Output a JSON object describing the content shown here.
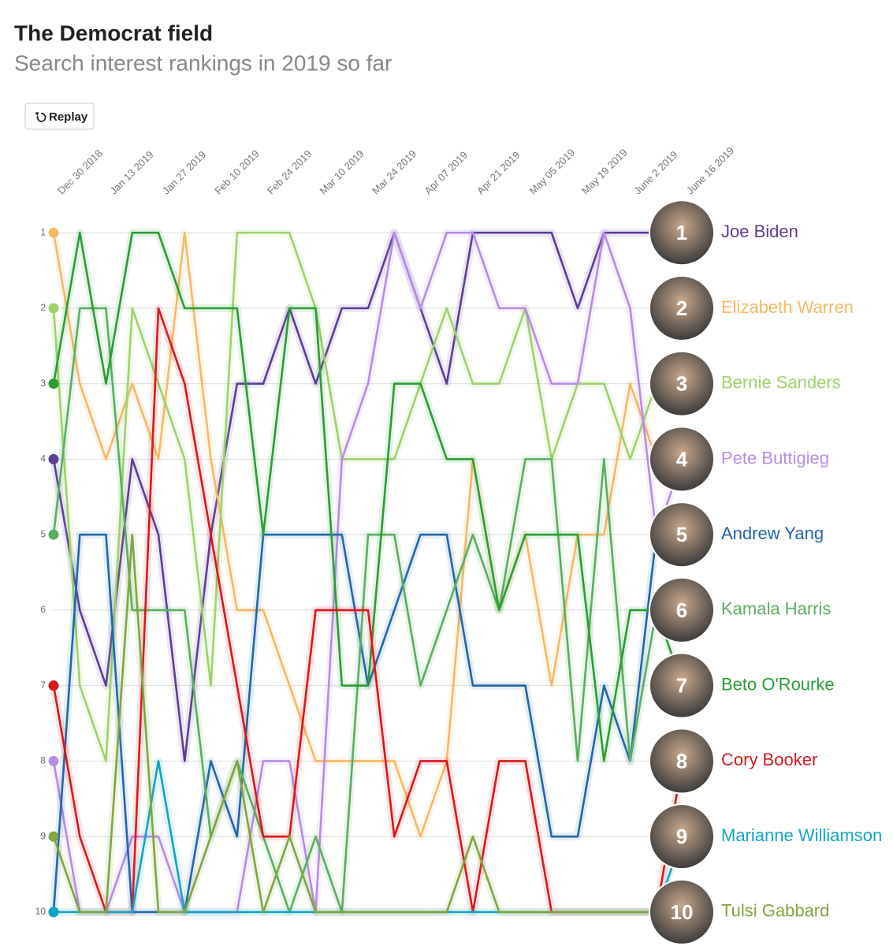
{
  "chart_data": {
    "type": "bump",
    "title": "The Democrat field",
    "subtitle": "Search interest rankings in 2019 so far",
    "button": "Replay",
    "categories": [
      "Dec 30 2018",
      null,
      "Jan 13 2019",
      null,
      "Jan 27 2019",
      null,
      "Feb 10 2019",
      null,
      "Feb 24 2019",
      null,
      "Mar 10 2019",
      null,
      "Mar 24 2019",
      null,
      "Apr 07 2019",
      null,
      "Apr 21 2019",
      null,
      "May 05 2019",
      null,
      "May 19 2019",
      null,
      "June 2 2019",
      null,
      "June 16 2019"
    ],
    "ylim": [
      0.58,
      10.45
    ],
    "y_inverted": true,
    "yticks": [
      1,
      2,
      3,
      4,
      5,
      6,
      7,
      8,
      9,
      10
    ],
    "grid": true,
    "series": [
      {
        "name": "Joe Biden",
        "rank": 1,
        "color": "#5e3c99",
        "values": [
          4,
          6,
          7,
          4,
          5,
          8,
          5,
          3,
          3,
          2,
          3,
          2,
          2,
          1,
          2,
          3,
          1,
          1,
          1,
          1,
          2,
          1,
          1,
          1,
          1
        ]
      },
      {
        "name": "Elizabeth Warren",
        "rank": 2,
        "color": "#f9b862",
        "values": [
          1,
          3,
          4,
          3,
          4,
          1,
          4,
          6,
          6,
          7,
          8,
          8,
          8,
          8,
          9,
          8,
          4,
          6,
          5,
          7,
          5,
          5,
          3,
          4,
          4
        ]
      },
      {
        "name": "Bernie Sanders",
        "rank": 3,
        "color": "#9ed36a",
        "values": [
          2,
          7,
          8,
          2,
          3,
          4,
          7,
          1,
          1,
          1,
          2,
          4,
          4,
          4,
          3,
          2,
          3,
          3,
          2,
          4,
          3,
          3,
          4,
          3,
          3
        ]
      },
      {
        "name": "Pete Buttigieg",
        "rank": 4,
        "color": "#b88be6",
        "values": [
          8,
          10,
          10,
          9,
          9,
          10,
          10,
          10,
          8,
          8,
          10,
          4,
          3,
          1,
          2,
          1,
          1,
          2,
          2,
          3,
          3,
          1,
          2,
          5,
          4
        ]
      },
      {
        "name": "Andrew Yang",
        "rank": 5,
        "color": "#2166ac",
        "values": [
          10,
          5,
          5,
          10,
          10,
          10,
          8,
          9,
          5,
          5,
          5,
          5,
          7,
          6,
          5,
          5,
          7,
          7,
          7,
          9,
          9,
          7,
          8,
          5,
          5
        ]
      },
      {
        "name": "Kamala Harris",
        "rank": 6,
        "color": "#5aae61",
        "values": [
          5,
          2,
          2,
          6,
          6,
          6,
          9,
          8,
          9,
          10,
          9,
          10,
          5,
          5,
          7,
          6,
          5,
          6,
          4,
          4,
          8,
          4,
          8,
          6,
          6
        ]
      },
      {
        "name": "Beto O'Rourke",
        "rank": 7,
        "color": "#2a9d34",
        "values": [
          3,
          1,
          3,
          1,
          1,
          2,
          2,
          2,
          5,
          2,
          2,
          7,
          7,
          3,
          3,
          4,
          4,
          6,
          5,
          5,
          5,
          8,
          6,
          6,
          7
        ]
      },
      {
        "name": "Cory Booker",
        "rank": 8,
        "color": "#d7191c",
        "values": [
          7,
          9,
          10,
          10,
          2,
          3,
          5,
          7,
          9,
          9,
          6,
          6,
          6,
          9,
          8,
          8,
          10,
          8,
          8,
          10,
          10,
          10,
          10,
          10,
          8
        ]
      },
      {
        "name": "Marianne Williamson",
        "rank": 9,
        "color": "#12a4c6",
        "values": [
          10,
          10,
          10,
          10,
          8,
          10,
          10,
          10,
          10,
          10,
          10,
          10,
          10,
          10,
          10,
          10,
          10,
          10,
          10,
          10,
          10,
          10,
          10,
          10,
          9
        ]
      },
      {
        "name": "Tulsi Gabbard",
        "rank": 10,
        "color": "#7fa53f",
        "values": [
          9,
          10,
          10,
          5,
          10,
          10,
          9,
          8,
          10,
          9,
          10,
          10,
          10,
          10,
          10,
          10,
          9,
          10,
          10,
          10,
          10,
          10,
          10,
          10,
          10
        ]
      }
    ]
  }
}
